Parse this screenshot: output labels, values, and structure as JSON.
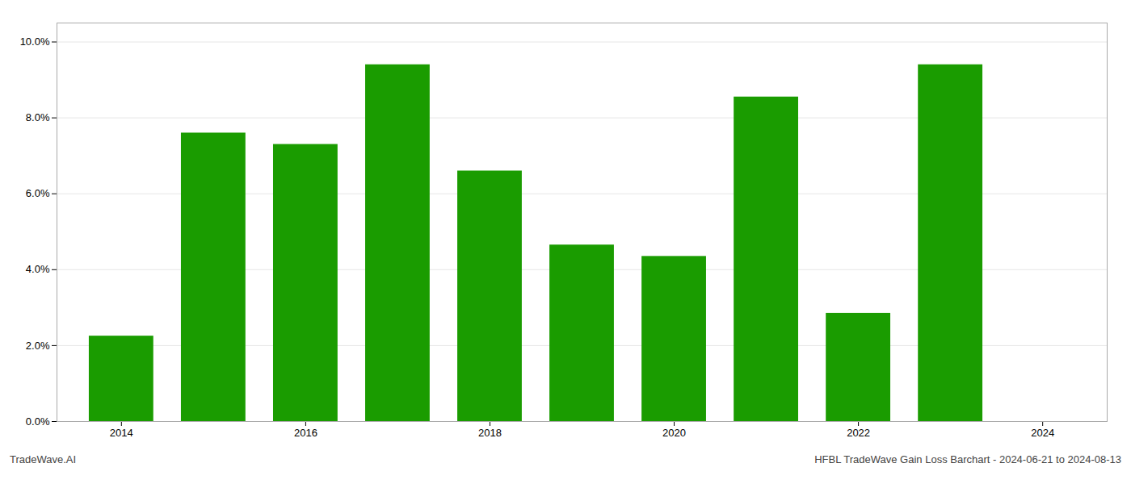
{
  "chart_data": {
    "type": "bar",
    "x": [
      2014,
      2015,
      2016,
      2017,
      2018,
      2019,
      2020,
      2021,
      2022,
      2023
    ],
    "values": [
      0.0225,
      0.076,
      0.073,
      0.094,
      0.066,
      0.0465,
      0.0435,
      0.0855,
      0.0285,
      0.094
    ],
    "color": "#1a9c00",
    "xlim": [
      2013.3,
      2024.7
    ],
    "xticks": [
      2014,
      2016,
      2018,
      2020,
      2022,
      2024
    ],
    "ylim": [
      0,
      0.105
    ],
    "yticks": [
      {
        "value": 0.0,
        "label": "0.0%"
      },
      {
        "value": 0.02,
        "label": "2.0%"
      },
      {
        "value": 0.04,
        "label": "4.0%"
      },
      {
        "value": 0.06,
        "label": "6.0%"
      },
      {
        "value": 0.08,
        "label": "8.0%"
      },
      {
        "value": 0.1,
        "label": "10.0%"
      }
    ],
    "grid": true,
    "annotations": [
      "TradeWave.AI",
      "HFBL TradeWave Gain Loss Barchart - 2024-06-21 to 2024-08-13"
    ]
  }
}
